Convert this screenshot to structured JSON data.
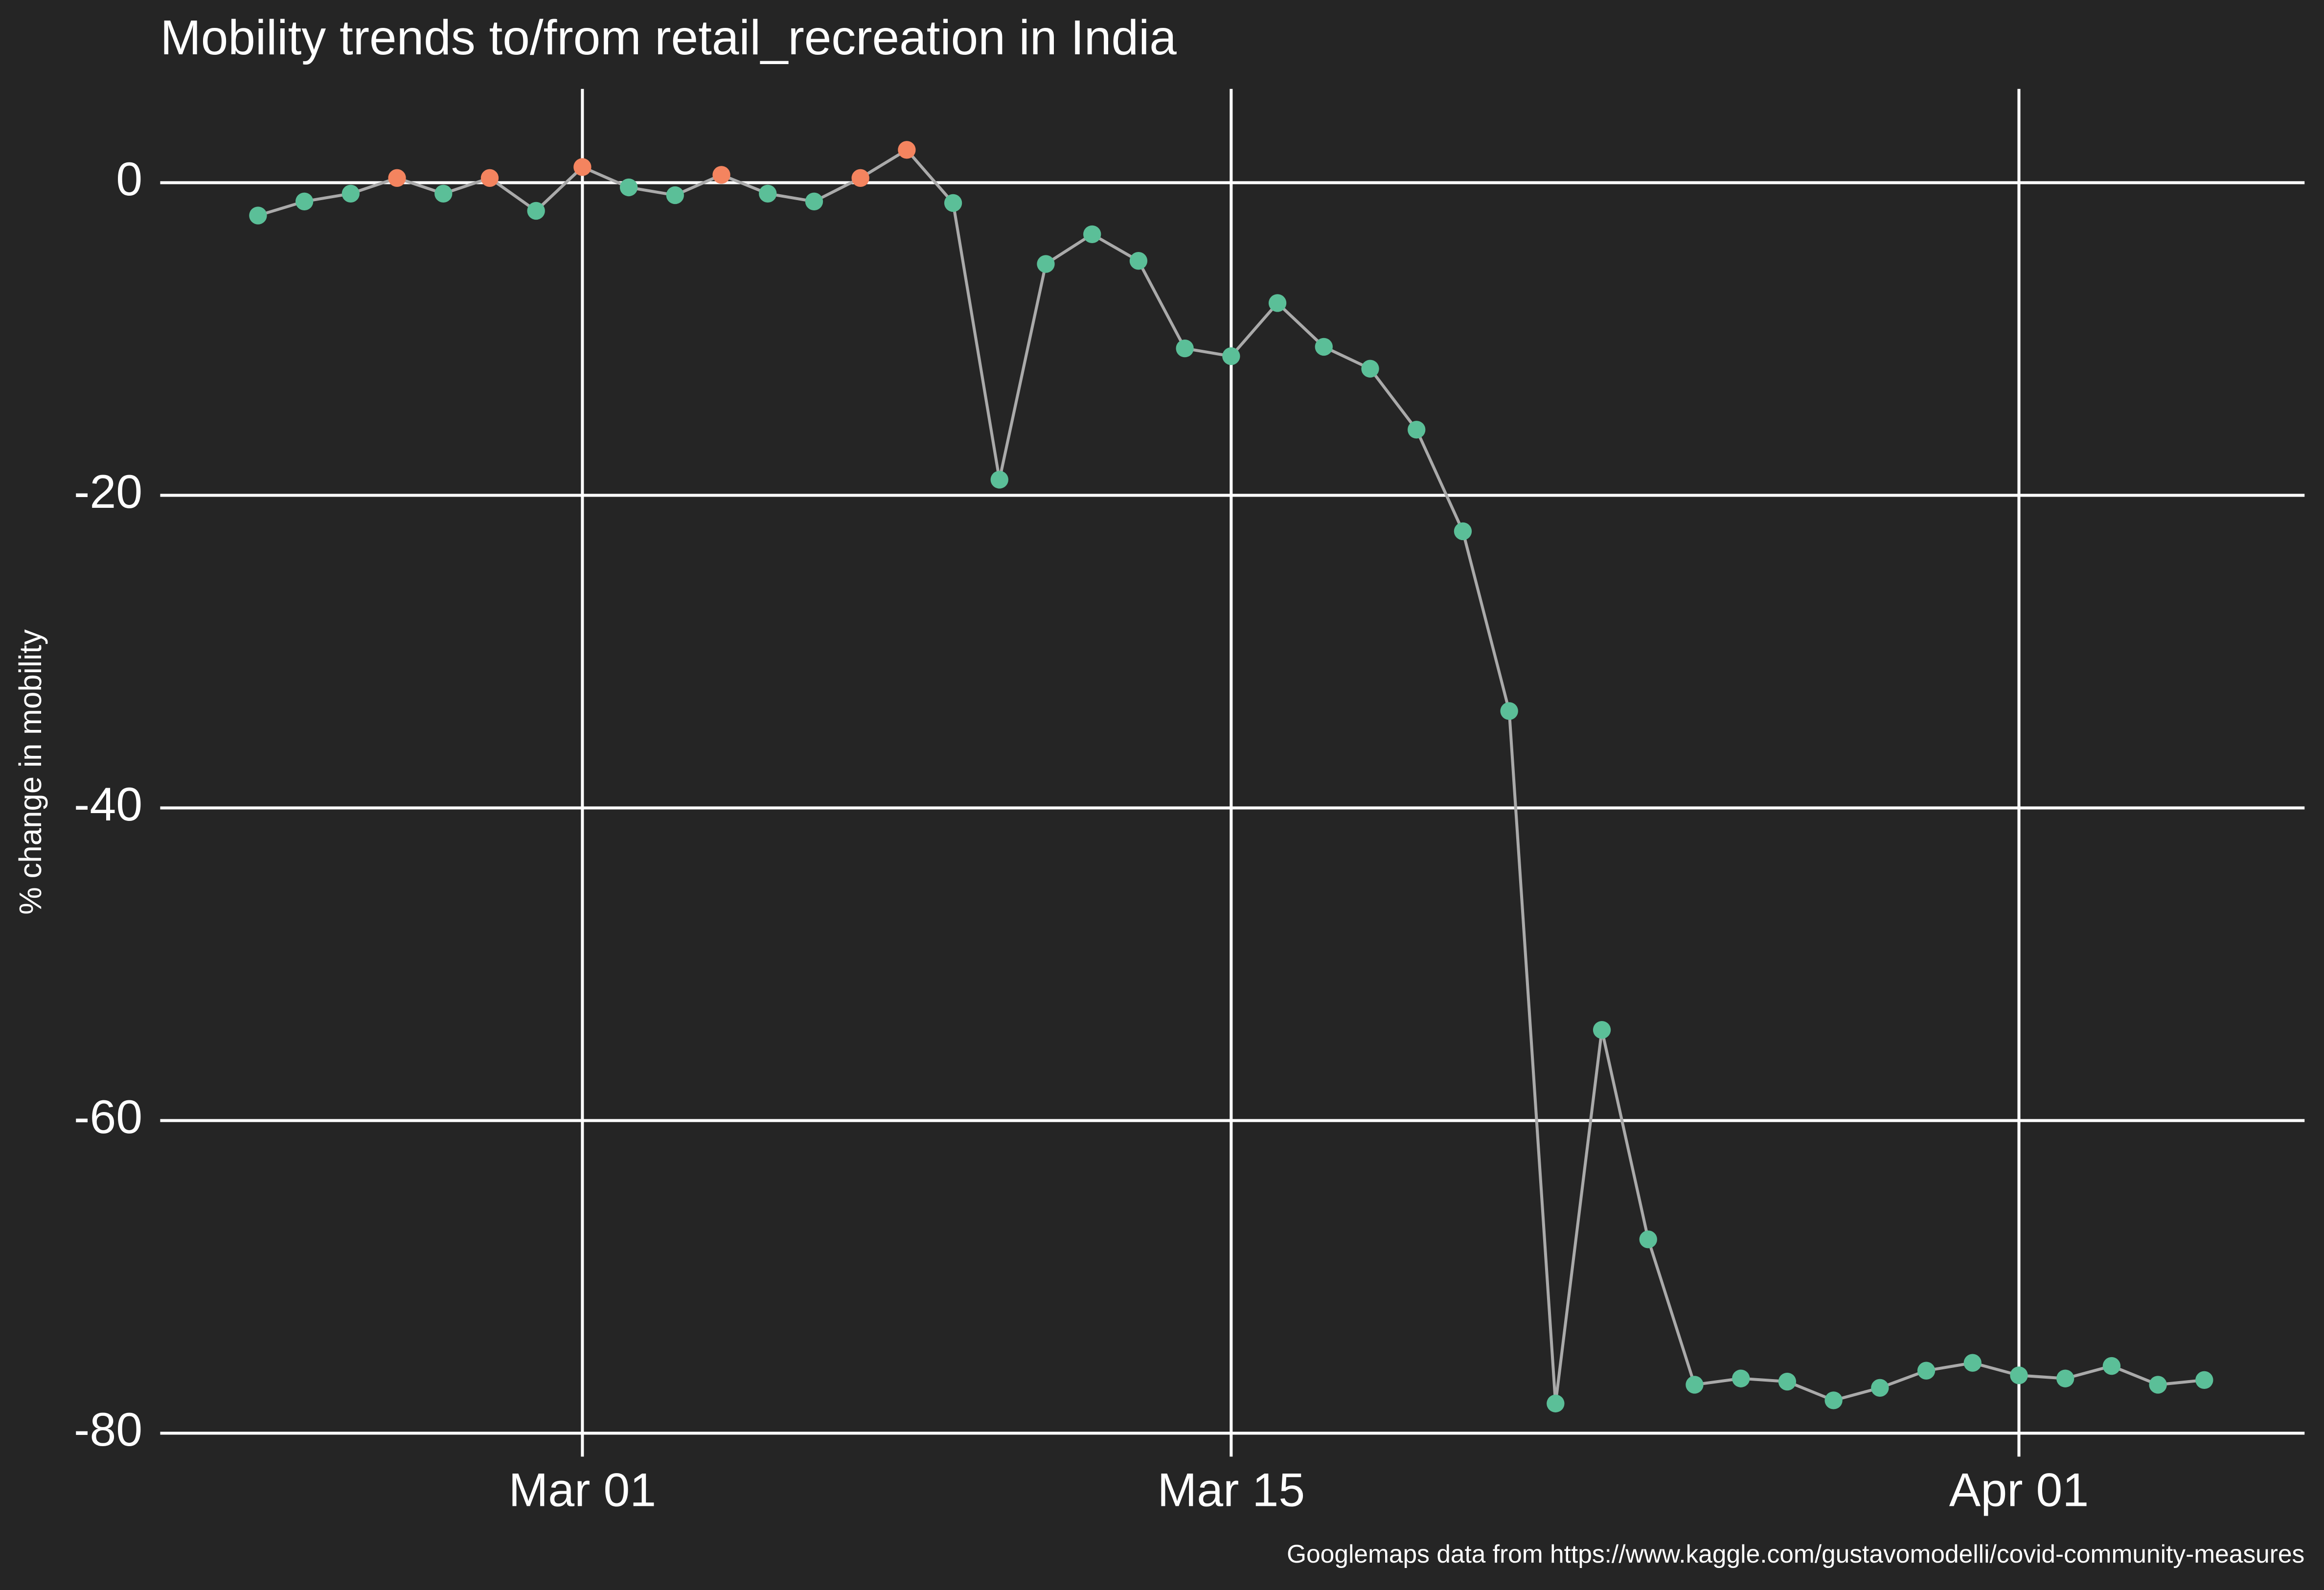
{
  "chart_data": {
    "type": "line",
    "title": "Mobility trends to/from retail_recreation in India",
    "y_label": "% change in mobility",
    "caption": "Googlemaps data from https://www.kaggle.com/gustavomodelli/covid-community-measures",
    "x": [
      "Feb 23",
      "Feb 24",
      "Feb 25",
      "Feb 26",
      "Feb 27",
      "Feb 28",
      "Feb 29",
      "Mar 01",
      "Mar 02",
      "Mar 03",
      "Mar 04",
      "Mar 05",
      "Mar 06",
      "Mar 07",
      "Mar 08",
      "Mar 09",
      "Mar 10",
      "Mar 11",
      "Mar 12",
      "Mar 13",
      "Mar 14",
      "Mar 15",
      "Mar 16",
      "Mar 17",
      "Mar 18",
      "Mar 19",
      "Mar 20",
      "Mar 21",
      "Mar 22",
      "Mar 23",
      "Mar 24",
      "Mar 25",
      "Mar 26",
      "Mar 27",
      "Mar 28",
      "Mar 29",
      "Mar 30",
      "Mar 31",
      "Apr 01",
      "Apr 02",
      "Apr 03",
      "Apr 04",
      "Apr 05"
    ],
    "values": [
      -2.1,
      -1.2,
      -0.7,
      0.3,
      -0.7,
      0.3,
      -1.8,
      1.0,
      -0.3,
      -0.8,
      0.5,
      -0.7,
      -1.2,
      0.3,
      2.1,
      -1.3,
      -19.0,
      -5.2,
      -3.3,
      -5.0,
      -10.6,
      -11.1,
      -7.7,
      -10.5,
      -11.9,
      -15.8,
      -22.3,
      -33.8,
      -78.1,
      -54.2,
      -67.6,
      -76.9,
      -76.5,
      -76.7,
      -77.9,
      -77.1,
      -76.0,
      -75.5,
      -76.3,
      -76.5,
      -75.7,
      -76.9,
      -76.6
    ],
    "xticks": [
      "Mar 01",
      "Mar 15",
      "Apr 01"
    ],
    "ylim": [
      -81.5,
      6
    ],
    "yticks": [
      0,
      -20,
      -40,
      -60,
      -80
    ],
    "grid": true,
    "line_color": "#aaaaaa",
    "point_colors": {
      "above_zero": "#f4845f",
      "below_zero": "#5bbf98"
    }
  }
}
